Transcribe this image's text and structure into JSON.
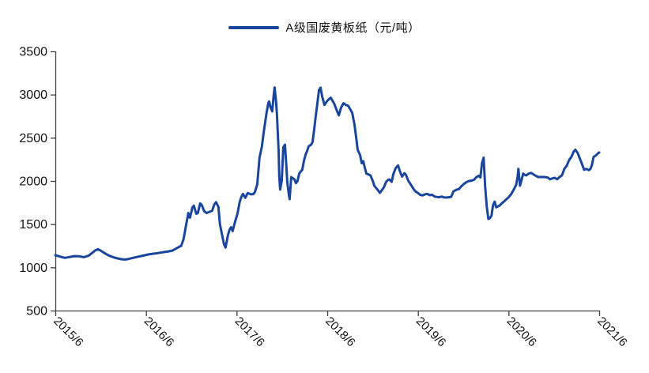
{
  "legend": {
    "label": "A级国废黄板纸（元/吨）"
  },
  "colors": {
    "line": "#1a459c",
    "axis": "#404040",
    "text": "#111111",
    "background": "#ffffff"
  },
  "chart_data": {
    "type": "line",
    "title": "",
    "legend_position": "top-center",
    "grid": false,
    "x_axis": {
      "label": "",
      "range": [
        2015.42,
        2021.42
      ],
      "tick_values": [
        2015.42,
        2016.42,
        2017.42,
        2018.42,
        2019.42,
        2020.42,
        2021.42
      ],
      "tick_labels": [
        "2015/6",
        "2016/6",
        "2017/6",
        "2018/6",
        "2019/6",
        "2020/6",
        "2021/6"
      ],
      "tick_label_rotation_deg": 45
    },
    "y_axis": {
      "label": "",
      "range": [
        500,
        3500
      ],
      "tick_values": [
        500,
        1000,
        1500,
        2000,
        2500,
        3000,
        3500
      ],
      "tick_labels": [
        "500",
        "1000",
        "1500",
        "2000",
        "2500",
        "3000",
        "3500"
      ]
    },
    "series": [
      {
        "name": "A级国废黄板纸（元/吨）",
        "color": "#1a459c",
        "x_unit": "decimal_year",
        "y_unit": "元/吨",
        "points": [
          [
            2015.42,
            1140
          ],
          [
            2015.472,
            1125
          ],
          [
            2015.525,
            1110
          ],
          [
            2015.577,
            1120
          ],
          [
            2015.63,
            1130
          ],
          [
            2015.682,
            1128
          ],
          [
            2015.734,
            1118
          ],
          [
            2015.787,
            1135
          ],
          [
            2015.83,
            1170
          ],
          [
            2015.865,
            1200
          ],
          [
            2015.892,
            1210
          ],
          [
            2015.927,
            1190
          ],
          [
            2015.97,
            1160
          ],
          [
            2016.014,
            1135
          ],
          [
            2016.058,
            1118
          ],
          [
            2016.101,
            1105
          ],
          [
            2016.145,
            1095
          ],
          [
            2016.189,
            1090
          ],
          [
            2016.232,
            1098
          ],
          [
            2016.276,
            1110
          ],
          [
            2016.32,
            1120
          ],
          [
            2016.363,
            1130
          ],
          [
            2016.407,
            1140
          ],
          [
            2016.451,
            1150
          ],
          [
            2016.494,
            1158
          ],
          [
            2016.538,
            1163
          ],
          [
            2016.582,
            1170
          ],
          [
            2016.625,
            1178
          ],
          [
            2016.669,
            1185
          ],
          [
            2016.713,
            1195
          ],
          [
            2016.748,
            1215
          ],
          [
            2016.783,
            1235
          ],
          [
            2016.809,
            1250
          ],
          [
            2016.835,
            1330
          ],
          [
            2016.861,
            1480
          ],
          [
            2016.879,
            1580
          ],
          [
            2016.887,
            1630
          ],
          [
            2016.905,
            1575
          ],
          [
            2016.931,
            1690
          ],
          [
            2016.948,
            1715
          ],
          [
            2016.975,
            1620
          ],
          [
            2016.992,
            1630
          ],
          [
            2017.018,
            1740
          ],
          [
            2017.036,
            1720
          ],
          [
            2017.062,
            1650
          ],
          [
            2017.088,
            1630
          ],
          [
            2017.114,
            1640
          ],
          [
            2017.149,
            1655
          ],
          [
            2017.175,
            1730
          ],
          [
            2017.193,
            1755
          ],
          [
            2017.219,
            1700
          ],
          [
            2017.236,
            1500
          ],
          [
            2017.263,
            1360
          ],
          [
            2017.28,
            1270
          ],
          [
            2017.298,
            1230
          ],
          [
            2017.324,
            1370
          ],
          [
            2017.341,
            1435
          ],
          [
            2017.359,
            1465
          ],
          [
            2017.376,
            1420
          ],
          [
            2017.403,
            1530
          ],
          [
            2017.429,
            1620
          ],
          [
            2017.455,
            1760
          ],
          [
            2017.472,
            1815
          ],
          [
            2017.49,
            1850
          ],
          [
            2017.516,
            1805
          ],
          [
            2017.542,
            1860
          ],
          [
            2017.577,
            1845
          ],
          [
            2017.603,
            1848
          ],
          [
            2017.621,
            1870
          ],
          [
            2017.647,
            1960
          ],
          [
            2017.673,
            2270
          ],
          [
            2017.699,
            2400
          ],
          [
            2017.717,
            2550
          ],
          [
            2017.734,
            2670
          ],
          [
            2017.752,
            2800
          ],
          [
            2017.769,
            2900
          ],
          [
            2017.778,
            2920
          ],
          [
            2017.795,
            2850
          ],
          [
            2017.813,
            2806
          ],
          [
            2017.83,
            3000
          ],
          [
            2017.839,
            3083
          ],
          [
            2017.857,
            2900
          ],
          [
            2017.865,
            2760
          ],
          [
            2017.883,
            2360
          ],
          [
            2017.891,
            2050
          ],
          [
            2017.9,
            1900
          ],
          [
            2017.918,
            2000
          ],
          [
            2017.935,
            2390
          ],
          [
            2017.953,
            2420
          ],
          [
            2017.97,
            2150
          ],
          [
            2017.979,
            1990
          ],
          [
            2017.996,
            1840
          ],
          [
            2018.005,
            1790
          ],
          [
            2018.022,
            2045
          ],
          [
            2018.04,
            2030
          ],
          [
            2018.057,
            2020
          ],
          [
            2018.075,
            1975
          ],
          [
            2018.092,
            2000
          ],
          [
            2018.11,
            2085
          ],
          [
            2018.127,
            2110
          ],
          [
            2018.144,
            2130
          ],
          [
            2018.162,
            2230
          ],
          [
            2018.179,
            2300
          ],
          [
            2018.197,
            2345
          ],
          [
            2018.214,
            2400
          ],
          [
            2018.241,
            2420
          ],
          [
            2018.258,
            2450
          ],
          [
            2018.276,
            2600
          ],
          [
            2018.293,
            2750
          ],
          [
            2018.311,
            2900
          ],
          [
            2018.328,
            3050
          ],
          [
            2018.346,
            3080
          ],
          [
            2018.363,
            2980
          ],
          [
            2018.389,
            2880
          ],
          [
            2018.415,
            2920
          ],
          [
            2018.442,
            2950
          ],
          [
            2018.459,
            2963
          ],
          [
            2018.477,
            2930
          ],
          [
            2018.494,
            2900
          ],
          [
            2018.52,
            2830
          ],
          [
            2018.547,
            2760
          ],
          [
            2018.573,
            2850
          ],
          [
            2018.599,
            2900
          ],
          [
            2018.625,
            2880
          ],
          [
            2018.651,
            2870
          ],
          [
            2018.678,
            2820
          ],
          [
            2018.695,
            2790
          ],
          [
            2018.721,
            2650
          ],
          [
            2018.739,
            2500
          ],
          [
            2018.756,
            2360
          ],
          [
            2018.782,
            2300
          ],
          [
            2018.8,
            2205
          ],
          [
            2018.817,
            2230
          ],
          [
            2018.835,
            2150
          ],
          [
            2018.852,
            2085
          ],
          [
            2018.878,
            2075
          ],
          [
            2018.896,
            2065
          ],
          [
            2018.922,
            2000
          ],
          [
            2018.939,
            1945
          ],
          [
            2018.957,
            1920
          ],
          [
            2018.974,
            1900
          ],
          [
            2019.001,
            1862
          ],
          [
            2019.027,
            1900
          ],
          [
            2019.044,
            1926
          ],
          [
            2019.07,
            1990
          ],
          [
            2019.088,
            2010
          ],
          [
            2019.105,
            2018
          ],
          [
            2019.131,
            1990
          ],
          [
            2019.149,
            2080
          ],
          [
            2019.175,
            2150
          ],
          [
            2019.201,
            2180
          ],
          [
            2019.219,
            2120
          ],
          [
            2019.245,
            2050
          ],
          [
            2019.271,
            2090
          ],
          [
            2019.289,
            2070
          ],
          [
            2019.315,
            2000
          ],
          [
            2019.341,
            1960
          ],
          [
            2019.359,
            1930
          ],
          [
            2019.376,
            1900
          ],
          [
            2019.393,
            1880
          ],
          [
            2019.42,
            1860
          ],
          [
            2019.446,
            1840
          ],
          [
            2019.472,
            1833
          ],
          [
            2019.498,
            1845
          ],
          [
            2019.524,
            1850
          ],
          [
            2019.551,
            1835
          ],
          [
            2019.577,
            1840
          ],
          [
            2019.603,
            1820
          ],
          [
            2019.629,
            1815
          ],
          [
            2019.655,
            1812
          ],
          [
            2019.682,
            1820
          ],
          [
            2019.708,
            1810
          ],
          [
            2019.734,
            1808
          ],
          [
            2019.76,
            1812
          ],
          [
            2019.787,
            1815
          ],
          [
            2019.813,
            1880
          ],
          [
            2019.848,
            1900
          ],
          [
            2019.874,
            1907
          ],
          [
            2019.9,
            1940
          ],
          [
            2019.935,
            1972
          ],
          [
            2019.961,
            1990
          ],
          [
            2019.987,
            2000
          ],
          [
            2020.014,
            2005
          ],
          [
            2020.04,
            2015
          ],
          [
            2020.066,
            2045
          ],
          [
            2020.092,
            2060
          ],
          [
            2020.11,
            2040
          ],
          [
            2020.127,
            2205
          ],
          [
            2020.145,
            2270
          ],
          [
            2020.162,
            1940
          ],
          [
            2020.18,
            1700
          ],
          [
            2020.197,
            1560
          ],
          [
            2020.215,
            1570
          ],
          [
            2020.232,
            1600
          ],
          [
            2020.249,
            1720
          ],
          [
            2020.267,
            1760
          ],
          [
            2020.284,
            1695
          ],
          [
            2020.302,
            1705
          ],
          [
            2020.319,
            1715
          ],
          [
            2020.346,
            1740
          ],
          [
            2020.372,
            1765
          ],
          [
            2020.398,
            1790
          ],
          [
            2020.424,
            1815
          ],
          [
            2020.45,
            1850
          ],
          [
            2020.477,
            1900
          ],
          [
            2020.503,
            1955
          ],
          [
            2020.52,
            2050
          ],
          [
            2020.529,
            2140
          ],
          [
            2020.546,
            1945
          ],
          [
            2020.564,
            2010
          ],
          [
            2020.581,
            2085
          ],
          [
            2020.599,
            2070
          ],
          [
            2020.616,
            2065
          ],
          [
            2020.642,
            2085
          ],
          [
            2020.669,
            2093
          ],
          [
            2020.695,
            2075
          ],
          [
            2020.721,
            2060
          ],
          [
            2020.747,
            2046
          ],
          [
            2020.782,
            2046
          ],
          [
            2020.817,
            2046
          ],
          [
            2020.852,
            2040
          ],
          [
            2020.878,
            2019
          ],
          [
            2020.904,
            2030
          ],
          [
            2020.93,
            2037
          ],
          [
            2020.957,
            2020
          ],
          [
            2020.983,
            2046
          ],
          [
            2021.009,
            2065
          ],
          [
            2021.035,
            2140
          ],
          [
            2021.061,
            2175
          ],
          [
            2021.087,
            2240
          ],
          [
            2021.114,
            2280
          ],
          [
            2021.14,
            2343
          ],
          [
            2021.157,
            2361
          ],
          [
            2021.183,
            2324
          ],
          [
            2021.21,
            2250
          ],
          [
            2021.227,
            2204
          ],
          [
            2021.253,
            2130
          ],
          [
            2021.279,
            2140
          ],
          [
            2021.306,
            2125
          ],
          [
            2021.323,
            2140
          ],
          [
            2021.34,
            2185
          ],
          [
            2021.358,
            2278
          ],
          [
            2021.384,
            2296
          ],
          [
            2021.401,
            2315
          ],
          [
            2021.42,
            2330
          ]
        ]
      }
    ]
  }
}
